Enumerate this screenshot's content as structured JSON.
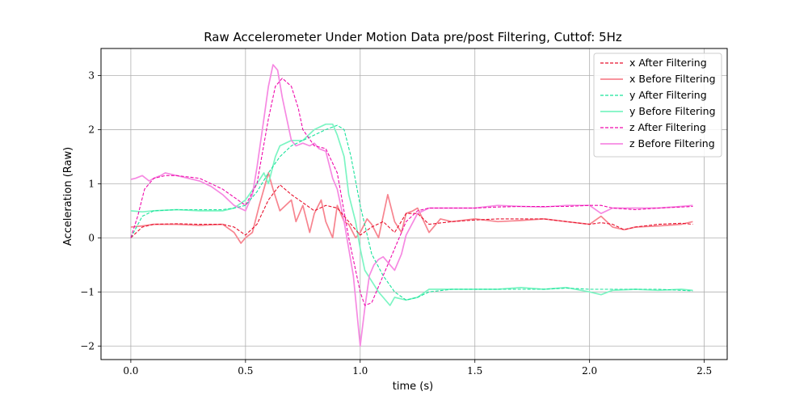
{
  "chart_data": {
    "type": "line",
    "title": "Raw Accelerometer Under Motion Data pre/post Filtering, Cuttof: 5Hz",
    "xlabel": "time (s)",
    "ylabel": "Acceleration (Raw)",
    "xlim": [
      -0.13,
      2.6
    ],
    "ylim": [
      -2.25,
      3.5
    ],
    "xticks": [
      0.0,
      0.5,
      1.0,
      1.5,
      2.0,
      2.5
    ],
    "xtick_labels": [
      "0.0",
      "0.5",
      "1.0",
      "1.5",
      "2.0",
      "2.5"
    ],
    "yticks": [
      -2,
      -1,
      0,
      1,
      2,
      3
    ],
    "ytick_labels": [
      "−2",
      "−1",
      "0",
      "1",
      "2",
      "3"
    ],
    "grid": true,
    "legend_position": "top-right",
    "series": [
      {
        "name": "x After Filtering",
        "color": "#e8112d",
        "style": "dashed",
        "x": [
          0.0,
          0.05,
          0.1,
          0.2,
          0.3,
          0.4,
          0.45,
          0.5,
          0.55,
          0.6,
          0.65,
          0.7,
          0.75,
          0.8,
          0.85,
          0.9,
          0.95,
          1.0,
          1.05,
          1.1,
          1.15,
          1.2,
          1.25,
          1.3,
          1.4,
          1.5,
          1.6,
          1.7,
          1.8,
          1.9,
          2.0,
          2.05,
          2.1,
          2.15,
          2.2,
          2.3,
          2.4,
          2.45
        ],
        "y": [
          0.0,
          0.2,
          0.25,
          0.26,
          0.25,
          0.25,
          0.2,
          0.05,
          0.25,
          0.7,
          0.98,
          0.8,
          0.65,
          0.5,
          0.6,
          0.55,
          0.3,
          0.05,
          0.2,
          0.3,
          0.1,
          0.45,
          0.45,
          0.25,
          0.3,
          0.33,
          0.35,
          0.35,
          0.35,
          0.3,
          0.25,
          0.28,
          0.25,
          0.15,
          0.2,
          0.25,
          0.27,
          0.25
        ]
      },
      {
        "name": "x Before Filtering",
        "color": "#f7848f",
        "style": "solid",
        "x": [
          0.0,
          0.05,
          0.1,
          0.2,
          0.3,
          0.4,
          0.45,
          0.48,
          0.5,
          0.53,
          0.56,
          0.6,
          0.62,
          0.65,
          0.7,
          0.72,
          0.75,
          0.78,
          0.8,
          0.83,
          0.85,
          0.88,
          0.9,
          0.93,
          0.95,
          0.98,
          1.0,
          1.03,
          1.05,
          1.08,
          1.1,
          1.12,
          1.15,
          1.18,
          1.2,
          1.23,
          1.25,
          1.3,
          1.35,
          1.4,
          1.5,
          1.6,
          1.7,
          1.8,
          1.9,
          2.0,
          2.05,
          2.1,
          2.15,
          2.2,
          2.3,
          2.4,
          2.45
        ],
        "y": [
          0.2,
          0.22,
          0.25,
          0.25,
          0.23,
          0.25,
          0.1,
          -0.1,
          0.0,
          0.1,
          0.6,
          1.2,
          0.9,
          0.5,
          0.7,
          0.3,
          0.6,
          0.1,
          0.45,
          0.7,
          0.3,
          0.0,
          0.6,
          0.3,
          0.25,
          0.0,
          0.1,
          0.35,
          0.25,
          0.0,
          0.4,
          0.8,
          0.3,
          0.1,
          0.45,
          0.5,
          0.55,
          0.1,
          0.35,
          0.3,
          0.35,
          0.3,
          0.32,
          0.35,
          0.3,
          0.25,
          0.4,
          0.2,
          0.15,
          0.2,
          0.22,
          0.25,
          0.3
        ]
      },
      {
        "name": "y After Filtering",
        "color": "#19e39b",
        "style": "dashed",
        "x": [
          0.0,
          0.05,
          0.1,
          0.2,
          0.3,
          0.4,
          0.45,
          0.5,
          0.55,
          0.6,
          0.65,
          0.7,
          0.75,
          0.8,
          0.85,
          0.9,
          0.93,
          0.96,
          1.0,
          1.05,
          1.1,
          1.15,
          1.2,
          1.25,
          1.3,
          1.4,
          1.5,
          1.6,
          1.7,
          1.8,
          1.9,
          2.0,
          2.1,
          2.2,
          2.3,
          2.4,
          2.45
        ],
        "y": [
          0.0,
          0.4,
          0.5,
          0.52,
          0.52,
          0.52,
          0.55,
          0.6,
          0.85,
          1.2,
          1.5,
          1.7,
          1.8,
          1.9,
          2.0,
          2.08,
          2.0,
          1.5,
          0.6,
          -0.3,
          -0.7,
          -1.0,
          -1.15,
          -1.1,
          -1.0,
          -0.95,
          -0.95,
          -0.95,
          -0.95,
          -0.95,
          -0.93,
          -0.95,
          -0.95,
          -0.95,
          -0.95,
          -0.97,
          -0.98
        ]
      },
      {
        "name": "y Before Filtering",
        "color": "#7cf5c3",
        "style": "solid",
        "x": [
          0.0,
          0.05,
          0.1,
          0.2,
          0.3,
          0.4,
          0.45,
          0.5,
          0.55,
          0.58,
          0.6,
          0.63,
          0.65,
          0.7,
          0.75,
          0.8,
          0.85,
          0.88,
          0.9,
          0.93,
          0.95,
          0.98,
          1.0,
          1.02,
          1.05,
          1.08,
          1.1,
          1.13,
          1.15,
          1.2,
          1.25,
          1.3,
          1.4,
          1.5,
          1.6,
          1.7,
          1.8,
          1.9,
          2.0,
          2.05,
          2.1,
          2.2,
          2.3,
          2.4,
          2.45
        ],
        "y": [
          0.5,
          0.48,
          0.5,
          0.52,
          0.5,
          0.5,
          0.55,
          0.7,
          1.0,
          1.2,
          1.0,
          1.5,
          1.7,
          1.8,
          1.8,
          2.0,
          2.1,
          2.1,
          1.9,
          1.5,
          0.8,
          0.3,
          -0.2,
          -0.6,
          -0.8,
          -1.0,
          -1.1,
          -1.25,
          -1.1,
          -1.15,
          -1.1,
          -0.95,
          -0.95,
          -0.95,
          -0.95,
          -0.92,
          -0.95,
          -0.92,
          -1.0,
          -1.05,
          -0.97,
          -0.95,
          -0.97,
          -0.95,
          -0.97
        ]
      },
      {
        "name": "z After Filtering",
        "color": "#ef0aac",
        "style": "dashed",
        "x": [
          0.0,
          0.03,
          0.06,
          0.1,
          0.15,
          0.2,
          0.3,
          0.4,
          0.45,
          0.5,
          0.55,
          0.6,
          0.63,
          0.66,
          0.7,
          0.73,
          0.75,
          0.8,
          0.85,
          0.9,
          0.95,
          1.0,
          1.02,
          1.05,
          1.1,
          1.15,
          1.2,
          1.25,
          1.3,
          1.4,
          1.5,
          1.6,
          1.7,
          1.8,
          1.9,
          2.0,
          2.05,
          2.1,
          2.2,
          2.3,
          2.4,
          2.45
        ],
        "y": [
          0.0,
          0.4,
          0.9,
          1.1,
          1.15,
          1.15,
          1.1,
          0.9,
          0.75,
          0.6,
          1.0,
          2.2,
          2.8,
          2.95,
          2.8,
          2.4,
          2.0,
          1.7,
          1.65,
          1.2,
          0.0,
          -1.0,
          -1.25,
          -1.2,
          -0.7,
          -0.2,
          0.3,
          0.5,
          0.55,
          0.55,
          0.55,
          0.57,
          0.58,
          0.58,
          0.58,
          0.6,
          0.6,
          0.55,
          0.52,
          0.55,
          0.57,
          0.58
        ]
      },
      {
        "name": "z Before Filtering",
        "color": "#f689e2",
        "style": "solid",
        "x": [
          0.0,
          0.02,
          0.05,
          0.08,
          0.1,
          0.13,
          0.15,
          0.2,
          0.25,
          0.3,
          0.35,
          0.4,
          0.45,
          0.5,
          0.53,
          0.55,
          0.58,
          0.6,
          0.62,
          0.64,
          0.66,
          0.68,
          0.7,
          0.72,
          0.75,
          0.78,
          0.8,
          0.82,
          0.85,
          0.88,
          0.9,
          0.93,
          0.95,
          0.97,
          1.0,
          1.02,
          1.04,
          1.06,
          1.08,
          1.1,
          1.13,
          1.15,
          1.18,
          1.2,
          1.25,
          1.3,
          1.4,
          1.5,
          1.6,
          1.7,
          1.8,
          1.9,
          2.0,
          2.05,
          2.1,
          2.2,
          2.3,
          2.4,
          2.45
        ],
        "y": [
          1.08,
          1.1,
          1.15,
          1.05,
          1.1,
          1.15,
          1.2,
          1.15,
          1.1,
          1.05,
          0.95,
          0.8,
          0.6,
          0.5,
          0.8,
          1.3,
          2.2,
          2.8,
          3.2,
          3.1,
          2.6,
          2.2,
          1.8,
          1.7,
          1.75,
          1.7,
          1.75,
          1.65,
          1.6,
          1.1,
          0.9,
          0.3,
          -0.2,
          -0.7,
          -2.0,
          -1.3,
          -0.7,
          -0.5,
          -0.4,
          -0.35,
          -0.5,
          -0.6,
          -0.3,
          0.05,
          0.45,
          0.55,
          0.55,
          0.55,
          0.6,
          0.58,
          0.57,
          0.6,
          0.6,
          0.45,
          0.55,
          0.55,
          0.55,
          0.58,
          0.6
        ]
      }
    ]
  }
}
